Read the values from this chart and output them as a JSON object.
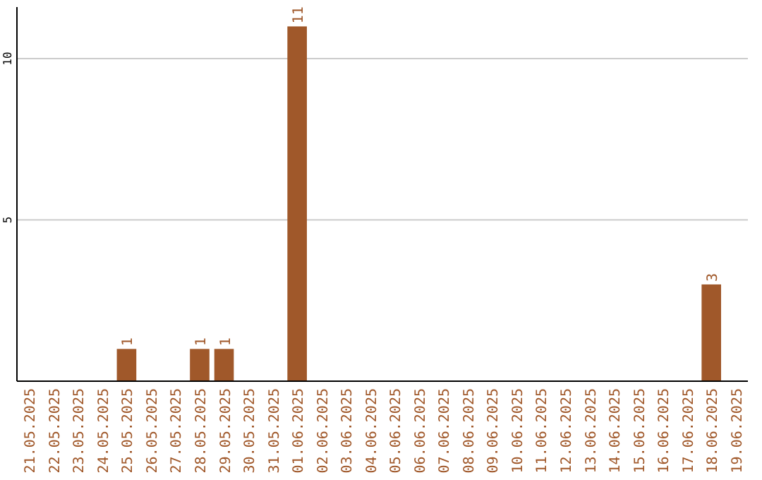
{
  "chart_data": {
    "type": "bar",
    "categories": [
      "21.05.2025",
      "22.05.2025",
      "23.05.2025",
      "24.05.2025",
      "25.05.2025",
      "26.05.2025",
      "27.05.2025",
      "28.05.2025",
      "29.05.2025",
      "30.05.2025",
      "31.05.2025",
      "01.06.2025",
      "02.06.2025",
      "03.06.2025",
      "04.06.2025",
      "05.06.2025",
      "06.06.2025",
      "07.06.2025",
      "08.06.2025",
      "09.06.2025",
      "10.06.2025",
      "11.06.2025",
      "12.06.2025",
      "13.06.2025",
      "14.06.2025",
      "15.06.2025",
      "16.06.2025",
      "17.06.2025",
      "18.06.2025",
      "19.06.2025"
    ],
    "values": [
      0,
      0,
      0,
      0,
      1,
      0,
      0,
      1,
      1,
      0,
      0,
      11,
      0,
      0,
      0,
      0,
      0,
      0,
      0,
      0,
      0,
      0,
      0,
      0,
      0,
      0,
      0,
      0,
      3,
      0
    ],
    "value_labels": [
      null,
      null,
      null,
      null,
      "1",
      null,
      null,
      "1",
      "1",
      null,
      null,
      "11",
      null,
      null,
      null,
      null,
      null,
      null,
      null,
      null,
      null,
      null,
      null,
      null,
      null,
      null,
      null,
      null,
      "3",
      null
    ],
    "color": "#a0582a",
    "ylim": [
      0,
      11.6
    ],
    "yticks": [
      5,
      10
    ],
    "grid": "y"
  }
}
